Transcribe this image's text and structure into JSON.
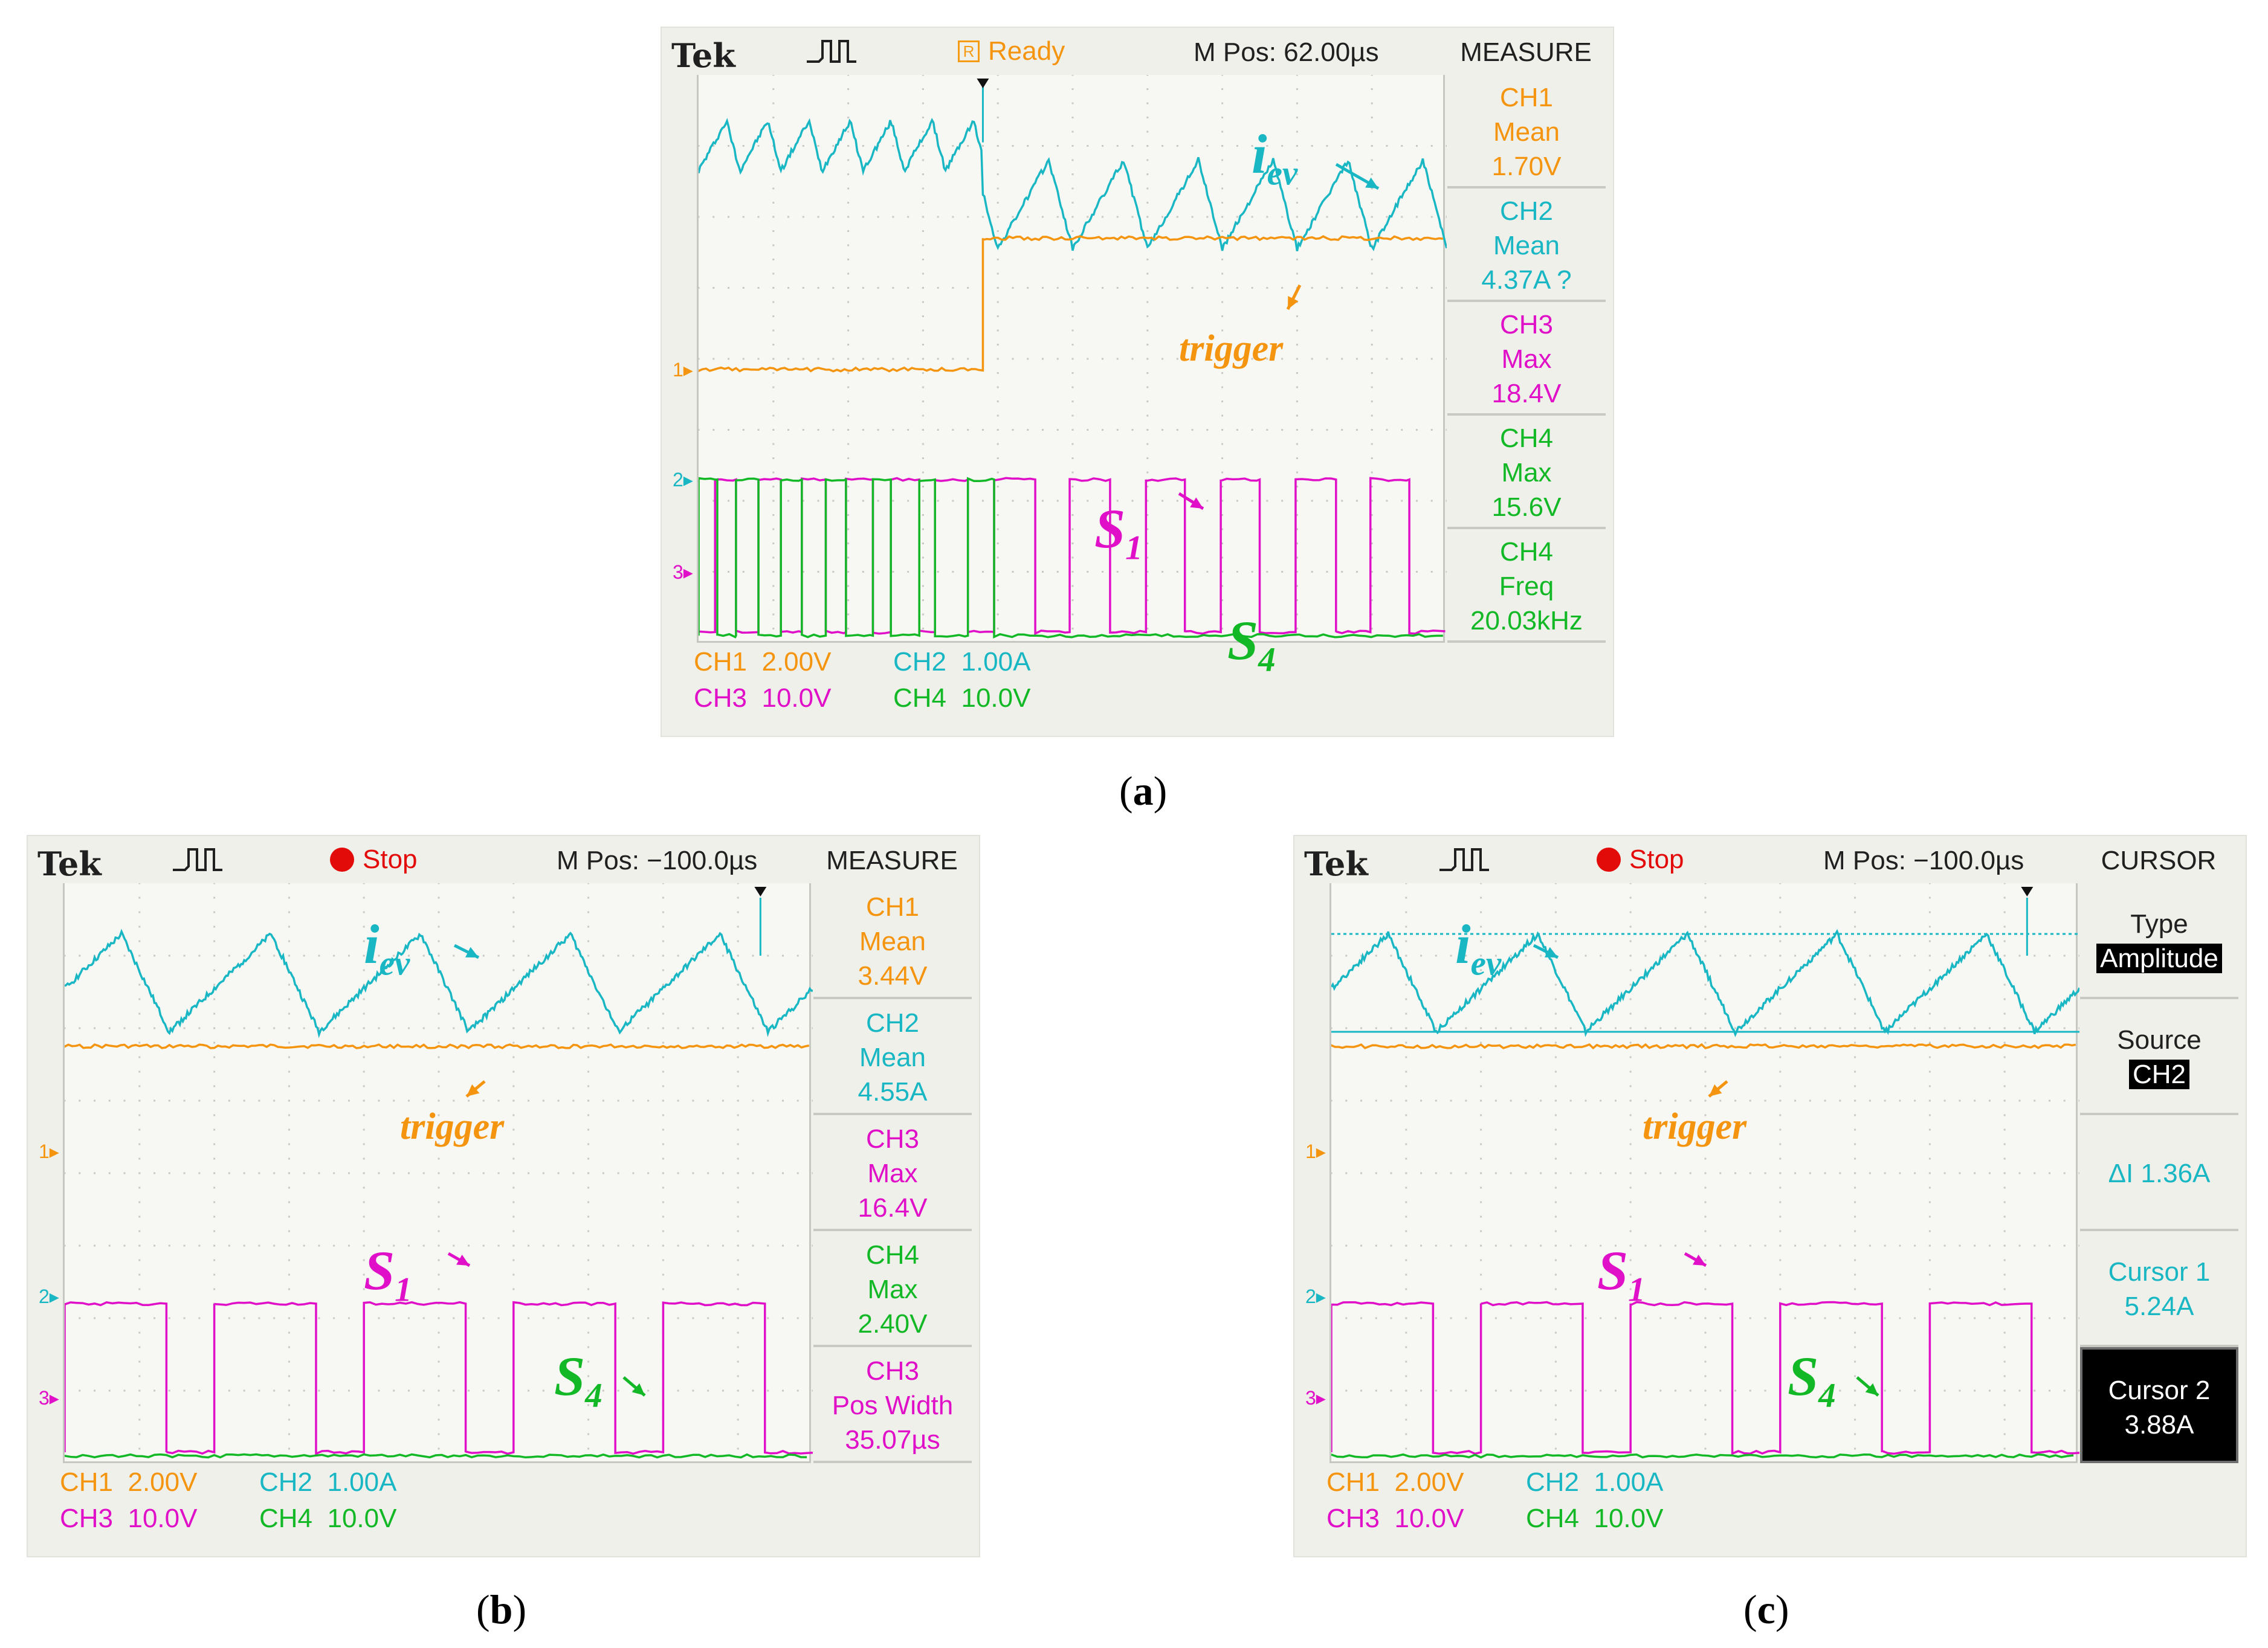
{
  "colors": {
    "ch1": "#f5950f",
    "ch2": "#19b7c4",
    "ch3": "#e010c8",
    "ch4": "#12b825",
    "grid": "#c9c9c4",
    "text": "#202020"
  },
  "chart_data": [
    {
      "id": "a",
      "type": "line",
      "caption": "a",
      "brand": "Tek",
      "status": "Ready",
      "status_icon": "R",
      "m_pos": "M Pos: 62.00µs",
      "side_title": "MEASURE",
      "labels": {
        "iev": {
          "main": "i",
          "sub": "ev"
        },
        "trigger": "trigger",
        "s1": {
          "main": "S",
          "sub": "1"
        },
        "s4": {
          "main": "S",
          "sub": "4"
        }
      },
      "readouts": [
        {
          "lines": [
            "CH1",
            "Mean",
            "1.70V"
          ],
          "color": "ch1"
        },
        {
          "lines": [
            "CH2",
            "Mean",
            "4.37A ?"
          ],
          "color": "ch2"
        },
        {
          "lines": [
            "CH3",
            "Max",
            "18.4V"
          ],
          "color": "ch3"
        },
        {
          "lines": [
            "CH4",
            "Max",
            "15.6V"
          ],
          "color": "ch4"
        },
        {
          "lines": [
            "CH4",
            "Freq",
            "20.03kHz"
          ],
          "color": "ch4"
        }
      ],
      "scales": [
        [
          {
            "ch": "CH1",
            "val": "2.00V",
            "color": "ch1"
          },
          {
            "ch": "CH2",
            "val": "1.00A",
            "color": "ch2"
          }
        ],
        [
          {
            "ch": "CH3",
            "val": "10.0V",
            "color": "ch3"
          },
          {
            "ch": "CH4",
            "val": "10.0V",
            "color": "ch4"
          }
        ]
      ],
      "x_divisions": 10,
      "y_divisions": 8,
      "trigger_x_div": 3.8,
      "series": [
        {
          "name": "i_ev",
          "channel": "CH2",
          "unit": "A",
          "segments": [
            {
              "from_div": 0.0,
              "to_div": 3.8,
              "period_div": 0.55,
              "low_div": 6.65,
              "high_div": 7.35,
              "spike_div": 7.85
            },
            {
              "from_div": 3.8,
              "to_div": 10.0,
              "period_div": 1.0,
              "low_div": 5.55,
              "high_div": 6.8
            }
          ]
        },
        {
          "name": "trigger",
          "channel": "CH1",
          "unit": "V",
          "segments": [
            {
              "from_div": 0.0,
              "to_div": 3.8,
              "level_div": 3.85
            },
            {
              "from_div": 3.8,
              "to_div": 10.0,
              "level_div": 5.7
            }
          ]
        },
        {
          "name": "S1",
          "channel": "CH3",
          "unit": "V",
          "low_div": 0.15,
          "high_div": 2.3,
          "pulses_div": [
            [
              0.22,
              0.5
            ],
            [
              0.8,
              1.1
            ],
            [
              1.38,
              1.7
            ],
            [
              1.97,
              2.33
            ],
            [
              2.57,
              2.95
            ],
            [
              3.16,
              3.6
            ],
            [
              3.95,
              4.5
            ],
            [
              4.96,
              5.5
            ],
            [
              5.98,
              6.5
            ],
            [
              6.98,
              7.5
            ],
            [
              7.98,
              8.52
            ],
            [
              8.98,
              9.5
            ]
          ]
        },
        {
          "name": "S4",
          "channel": "CH4",
          "unit": "V",
          "low_div": 0.1,
          "high_div": 2.3,
          "pulses_div": [
            [
              0.0,
              0.25
            ],
            [
              0.5,
              0.8
            ],
            [
              1.1,
              1.38
            ],
            [
              1.7,
              1.97
            ],
            [
              2.33,
              2.57
            ],
            [
              2.95,
              3.16
            ],
            [
              3.6,
              3.95
            ]
          ]
        }
      ]
    },
    {
      "id": "b",
      "type": "line",
      "caption": "b",
      "brand": "Tek",
      "status": "Stop",
      "m_pos": "M Pos: −100.0µs",
      "side_title": "MEASURE",
      "labels": {
        "iev": {
          "main": "i",
          "sub": "ev"
        },
        "trigger": "trigger",
        "s1": {
          "main": "S",
          "sub": "1"
        },
        "s4": {
          "main": "S",
          "sub": "4"
        }
      },
      "readouts": [
        {
          "lines": [
            "CH1",
            "Mean",
            "3.44V"
          ],
          "color": "ch1"
        },
        {
          "lines": [
            "CH2",
            "Mean",
            "4.55A"
          ],
          "color": "ch2"
        },
        {
          "lines": [
            "CH3",
            "Max",
            "16.4V"
          ],
          "color": "ch3"
        },
        {
          "lines": [
            "CH4",
            "Max",
            "2.40V"
          ],
          "color": "ch4"
        },
        {
          "lines": [
            "CH3",
            "Pos Width",
            "35.07µs"
          ],
          "color": "ch3"
        }
      ],
      "scales": [
        [
          {
            "ch": "CH1",
            "val": "2.00V",
            "color": "ch1"
          },
          {
            "ch": "CH2",
            "val": "1.00A",
            "color": "ch2"
          }
        ],
        [
          {
            "ch": "CH3",
            "val": "10.0V",
            "color": "ch3"
          },
          {
            "ch": "CH4",
            "val": "10.0V",
            "color": "ch4"
          }
        ]
      ],
      "x_divisions": 10,
      "y_divisions": 8,
      "trigger_x_div": 9.3,
      "series": [
        {
          "name": "i_ev",
          "channel": "CH2",
          "unit": "A",
          "segments": [
            {
              "from_div": 0.0,
              "to_div": 10.0,
              "period_div": 2.0,
              "phase_div": 1.4,
              "low_div": 5.95,
              "high_div": 7.3,
              "spike_div": 7.8
            }
          ]
        },
        {
          "name": "trigger",
          "channel": "CH1",
          "unit": "V",
          "segments": [
            {
              "from_div": 0.0,
              "to_div": 10.0,
              "level_div": 5.75
            }
          ]
        },
        {
          "name": "S1",
          "channel": "CH3",
          "unit": "V",
          "low_div": 0.15,
          "high_div": 2.2,
          "pulses_div": [
            [
              0.0,
              1.36
            ],
            [
              2.0,
              3.36
            ],
            [
              4.0,
              5.36
            ],
            [
              6.0,
              7.36
            ],
            [
              8.0,
              9.36
            ]
          ]
        },
        {
          "name": "S4",
          "channel": "CH4",
          "unit": "V",
          "low_div": 0.1,
          "high_div": 0.1,
          "pulses_div": []
        }
      ]
    },
    {
      "id": "c",
      "type": "line",
      "caption": "c",
      "brand": "Tek",
      "status": "Stop",
      "m_pos": "M Pos: −100.0µs",
      "side_title": "CURSOR",
      "labels": {
        "iev": {
          "main": "i",
          "sub": "ev"
        },
        "trigger": "trigger",
        "s1": {
          "main": "S",
          "sub": "1"
        },
        "s4": {
          "main": "S",
          "sub": "4"
        }
      },
      "readouts": [
        {
          "lines": [
            "Type",
            "Amplitude"
          ],
          "color": "text",
          "invert_last": true
        },
        {
          "lines": [
            "Source",
            "CH2"
          ],
          "color": "text",
          "invert_last": true
        },
        {
          "lines": [
            "ΔI 1.36A"
          ],
          "color": "ch2"
        },
        {
          "lines": [
            "Cursor 1",
            "5.24A"
          ],
          "color": "ch2"
        },
        {
          "lines": [
            "Cursor 2",
            "3.88A"
          ],
          "color": "text",
          "invert_all": true
        }
      ],
      "scales": [
        [
          {
            "ch": "CH1",
            "val": "2.00V",
            "color": "ch1"
          },
          {
            "ch": "CH2",
            "val": "1.00A",
            "color": "ch2"
          }
        ],
        [
          {
            "ch": "CH3",
            "val": "10.0V",
            "color": "ch3"
          },
          {
            "ch": "CH4",
            "val": "10.0V",
            "color": "ch4"
          }
        ]
      ],
      "x_divisions": 10,
      "y_divisions": 8,
      "trigger_x_div": 9.3,
      "cursors_div": [
        7.3,
        5.95
      ],
      "series": [
        {
          "name": "i_ev",
          "channel": "CH2",
          "unit": "A",
          "segments": [
            {
              "from_div": 0.0,
              "to_div": 10.0,
              "period_div": 2.0,
              "phase_div": 1.4,
              "low_div": 5.95,
              "high_div": 7.3,
              "spike_div": 7.8
            }
          ]
        },
        {
          "name": "trigger",
          "channel": "CH1",
          "unit": "V",
          "segments": [
            {
              "from_div": 0.0,
              "to_div": 10.0,
              "level_div": 5.75
            }
          ]
        },
        {
          "name": "S1",
          "channel": "CH3",
          "unit": "V",
          "low_div": 0.15,
          "high_div": 2.2,
          "pulses_div": [
            [
              0.0,
              1.36
            ],
            [
              2.0,
              3.36
            ],
            [
              4.0,
              5.36
            ],
            [
              6.0,
              7.36
            ],
            [
              8.0,
              9.36
            ]
          ]
        },
        {
          "name": "S4",
          "channel": "CH4",
          "unit": "V",
          "low_div": 0.1,
          "high_div": 0.1,
          "pulses_div": []
        }
      ]
    }
  ]
}
